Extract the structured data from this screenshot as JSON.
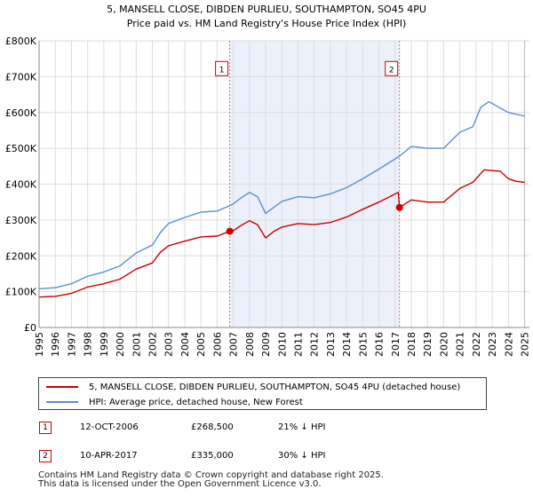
{
  "chart_data": {
    "type": "line",
    "title": "5, MANSELL CLOSE, DIBDEN PURLIEU, SOUTHAMPTON, SO45 4PU",
    "subtitle": "Price paid vs. HM Land Registry's House Price Index (HPI)",
    "xlim": [
      1995,
      2025.3
    ],
    "ylim": [
      0,
      800000
    ],
    "y_ticks": [
      0,
      100000,
      200000,
      300000,
      400000,
      500000,
      600000,
      700000,
      800000
    ],
    "y_tick_labels": [
      "£0",
      "£100K",
      "£200K",
      "£300K",
      "£400K",
      "£500K",
      "£600K",
      "£700K",
      "£800K"
    ],
    "x_ticks": [
      1995,
      1996,
      1997,
      1998,
      1999,
      2000,
      2001,
      2002,
      2003,
      2004,
      2005,
      2006,
      2007,
      2008,
      2009,
      2010,
      2011,
      2012,
      2013,
      2014,
      2015,
      2016,
      2017,
      2018,
      2019,
      2020,
      2021,
      2022,
      2023,
      2024,
      2025
    ],
    "grid": true,
    "shaded_range": [
      2006.78,
      2017.27
    ],
    "series": [
      {
        "name": "5, MANSELL CLOSE, DIBDEN PURLIEU, SOUTHAMPTON, SO45 4PU (detached house)",
        "color": "#cc0000",
        "x": [
          1995,
          1996,
          1997,
          1998,
          1999,
          2000,
          2001,
          2002,
          2002.5,
          2003,
          2004,
          2005,
          2006,
          2006.78,
          2007,
          2007.5,
          2008,
          2008.5,
          2009,
          2009.5,
          2010,
          2011,
          2012,
          2013,
          2014,
          2015,
          2016,
          2017.2,
          2017.27,
          2018,
          2019,
          2020,
          2021,
          2021.8,
          2022.5,
          2023,
          2023.5,
          2024,
          2024.5,
          2025
        ],
        "values": [
          85000,
          87000,
          95000,
          113000,
          122000,
          135000,
          163000,
          180000,
          210000,
          228000,
          241000,
          253000,
          255000,
          268500,
          270000,
          285000,
          298000,
          287000,
          250000,
          268000,
          280000,
          290000,
          287000,
          293000,
          308000,
          330000,
          350000,
          377000,
          335000,
          356000,
          350000,
          350000,
          388000,
          405000,
          440000,
          438000,
          436000,
          415000,
          408000,
          405000
        ]
      },
      {
        "name": "HPI: Average price, detached house, New Forest",
        "color": "#5b8fd0",
        "x": [
          1995,
          1996,
          1997,
          1998,
          1999,
          2000,
          2001,
          2002,
          2002.5,
          2003,
          2004,
          2005,
          2006,
          2006.78,
          2007,
          2007.5,
          2008,
          2008.5,
          2009,
          2009.5,
          2010,
          2011,
          2012,
          2013,
          2014,
          2015,
          2016,
          2017.27,
          2018,
          2019,
          2020,
          2021,
          2021.8,
          2022.3,
          2022.8,
          2023.2,
          2023.6,
          2024,
          2024.5,
          2025
        ],
        "values": [
          108000,
          111000,
          122000,
          143000,
          155000,
          172000,
          208000,
          230000,
          265000,
          290000,
          307000,
          322000,
          325000,
          340000,
          345000,
          362000,
          377000,
          365000,
          318000,
          335000,
          352000,
          365000,
          362000,
          373000,
          390000,
          415000,
          442000,
          478000,
          505000,
          500000,
          500000,
          545000,
          560000,
          615000,
          630000,
          620000,
          610000,
          600000,
          595000,
          590000
        ]
      }
    ],
    "transactions": [
      {
        "label": "1",
        "x": 2006.78,
        "value": 268500
      },
      {
        "label": "2",
        "x": 2017.27,
        "value": 335000
      }
    ]
  },
  "legend": [
    {
      "label": "5, MANSELL CLOSE, DIBDEN PURLIEU, SOUTHAMPTON, SO45 4PU (detached house)",
      "color": "#cc0000"
    },
    {
      "label": "HPI: Average price, detached house, New Forest",
      "color": "#5b8fd0"
    }
  ],
  "transactions_table": [
    {
      "label": "1",
      "date": "12-OCT-2006",
      "price": "£268,500",
      "hpi": "21% ↓ HPI"
    },
    {
      "label": "2",
      "date": "10-APR-2017",
      "price": "£335,000",
      "hpi": "30% ↓ HPI"
    }
  ],
  "footer": {
    "line1": "Contains HM Land Registry data © Crown copyright and database right 2025.",
    "line2": "This data is licensed under the Open Government Licence v3.0."
  }
}
